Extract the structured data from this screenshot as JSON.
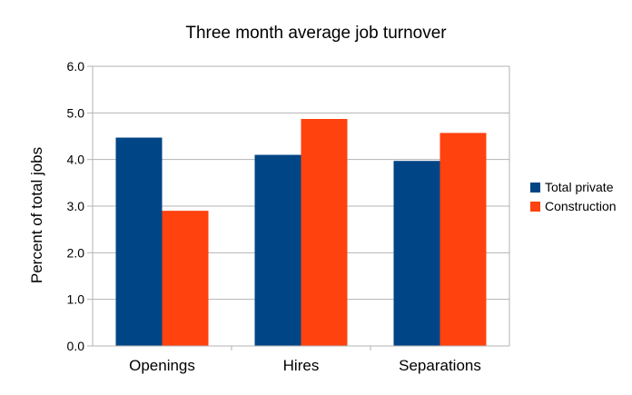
{
  "chart_data": {
    "type": "bar",
    "title": "Three month average job turnover",
    "xlabel": "",
    "ylabel": "Percent of total jobs",
    "categories": [
      "Openings",
      "Hires",
      "Separations"
    ],
    "series": [
      {
        "name": "Total private",
        "values": [
          4.47,
          4.1,
          3.97
        ],
        "color": "#004586"
      },
      {
        "name": "Construction",
        "values": [
          2.9,
          4.87,
          4.57
        ],
        "color": "#ff420e"
      }
    ],
    "ylim": [
      0,
      6
    ],
    "yticks": [
      "0.0",
      "1.0",
      "2.0",
      "3.0",
      "4.0",
      "5.0",
      "6.0"
    ],
    "ytick_values": [
      0,
      1,
      2,
      3,
      4,
      5,
      6
    ],
    "grid": true,
    "legend": "right"
  }
}
